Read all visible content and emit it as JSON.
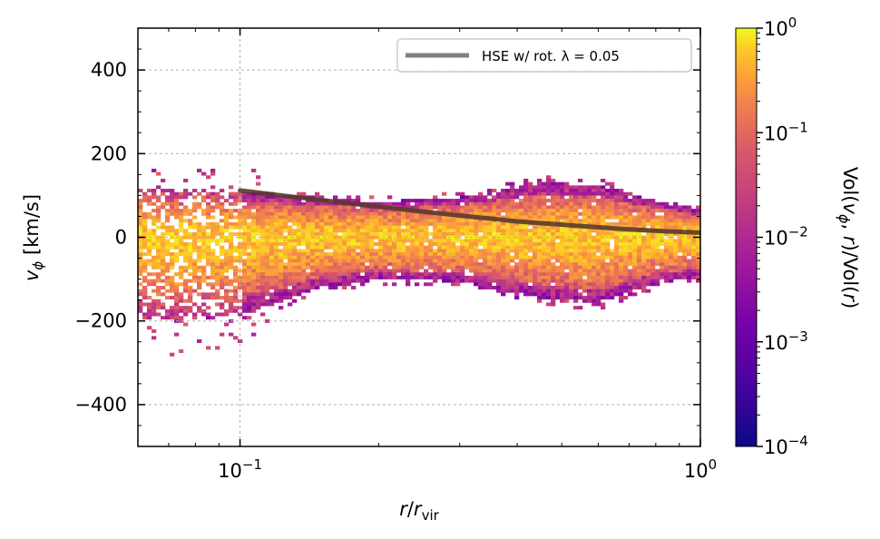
{
  "chart_data": {
    "type": "heatmap",
    "title": "",
    "xlabel": "r/r_vir",
    "ylabel": "v_φ [km/s]",
    "xscale": "log",
    "xlim": [
      0.06,
      1.0
    ],
    "ylim": [
      -500,
      500
    ],
    "grid": true,
    "x_ticks": [
      {
        "value": 0.1,
        "base": "10",
        "exp": "−1"
      },
      {
        "value": 1.0,
        "base": "10",
        "exp": "0"
      }
    ],
    "y_ticks": [
      {
        "value": -400,
        "label": "−400"
      },
      {
        "value": -200,
        "label": "−200"
      },
      {
        "value": 0,
        "label": "0"
      },
      {
        "value": 200,
        "label": "200"
      },
      {
        "value": 400,
        "label": "400"
      }
    ],
    "density_profile": {
      "r": [
        0.06,
        0.08,
        0.1,
        0.15,
        0.2,
        0.3,
        0.45,
        0.6,
        0.8,
        1.0
      ],
      "v_upper": [
        120,
        115,
        110,
        95,
        85,
        95,
        130,
        125,
        85,
        65
      ],
      "v_lower": [
        -200,
        -190,
        -185,
        -120,
        -100,
        -105,
        -145,
        -155,
        -110,
        -95
      ]
    },
    "series": [
      {
        "name": "HSE w/ rot. λ = 0.05",
        "color": "#808080",
        "r": [
          0.1,
          0.13,
          0.17,
          0.22,
          0.3,
          0.4,
          0.55,
          0.7,
          0.85,
          1.0
        ],
        "v": [
          112,
          97,
          82,
          68,
          52,
          38,
          27,
          19,
          14,
          11
        ]
      }
    ],
    "legend_position": "top-right",
    "colorbar": {
      "cmap": "plasma",
      "scale": "log",
      "range": [
        0.0001,
        1
      ],
      "label": "Vol(v_φ, r)/Vol(r)",
      "ticks": [
        {
          "value": 1,
          "base": "10",
          "exp": "0"
        },
        {
          "value": 0.1,
          "base": "10",
          "exp": "−1"
        },
        {
          "value": 0.01,
          "base": "10",
          "exp": "−2"
        },
        {
          "value": 0.001,
          "base": "10",
          "exp": "−3"
        },
        {
          "value": 0.0001,
          "base": "10",
          "exp": "−4"
        }
      ]
    }
  }
}
